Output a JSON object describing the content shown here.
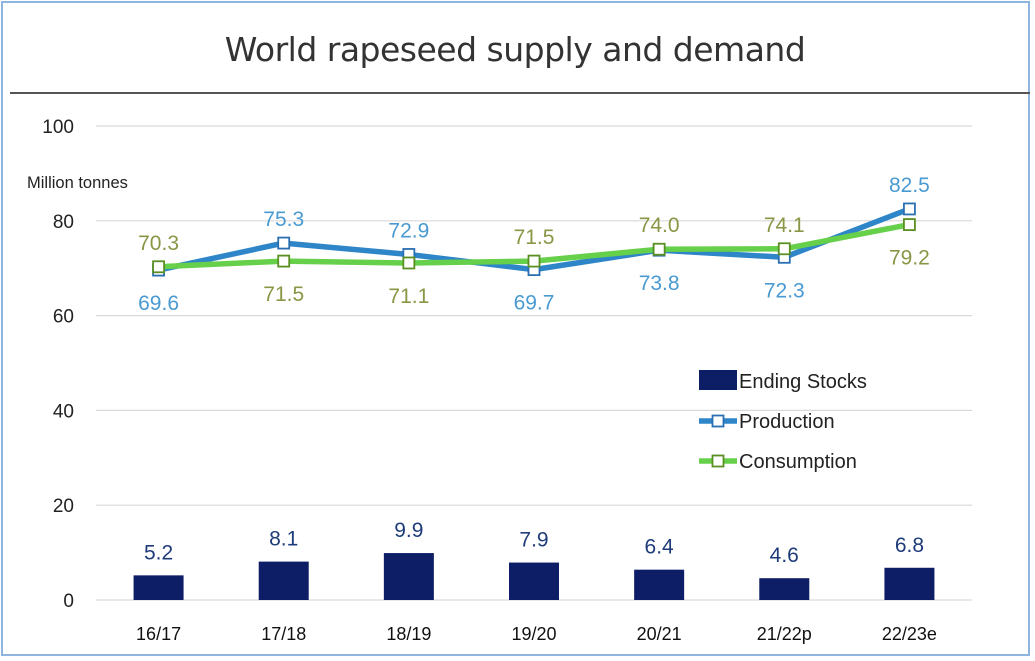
{
  "chart_data": {
    "type": "bar",
    "title": "World rapeseed supply and demand",
    "ylabel": "Million tonnes",
    "xlabel": "",
    "ylim": [
      0,
      100
    ],
    "yticks": [
      "0",
      "20",
      "40",
      "60",
      "80",
      "100"
    ],
    "grid": true,
    "legend_position": "right",
    "categories": [
      "16/17",
      "17/18",
      "18/19",
      "19/20",
      "20/21",
      "21/22p",
      "22/23e"
    ],
    "series": [
      {
        "name": "Ending Stocks",
        "kind": "bar",
        "color": "#0d1e66",
        "label_color": "#1f3c7a",
        "values": [
          5.2,
          8.1,
          9.9,
          7.9,
          6.4,
          4.6,
          6.8
        ],
        "labels": [
          "5.2",
          "8.1",
          "9.9",
          "7.9",
          "6.4",
          "4.6",
          "6.8"
        ]
      },
      {
        "name": "Production",
        "kind": "line",
        "color": "#2e86c8",
        "label_color": "#4a9ad2",
        "values": [
          69.6,
          75.3,
          72.9,
          69.7,
          73.8,
          72.3,
          82.5
        ],
        "labels": [
          "69.6",
          "75.3",
          "72.9",
          "69.7",
          "73.8",
          "72.3",
          "82.5"
        ]
      },
      {
        "name": "Consumption",
        "kind": "line",
        "color": "#66d04a",
        "label_color": "#8a9645",
        "values": [
          70.3,
          71.5,
          71.1,
          71.5,
          74.0,
          74.1,
          79.2
        ],
        "labels": [
          "70.3",
          "71.5",
          "71.1",
          "71.5",
          "74.0",
          "74.1",
          "79.2"
        ]
      }
    ]
  }
}
